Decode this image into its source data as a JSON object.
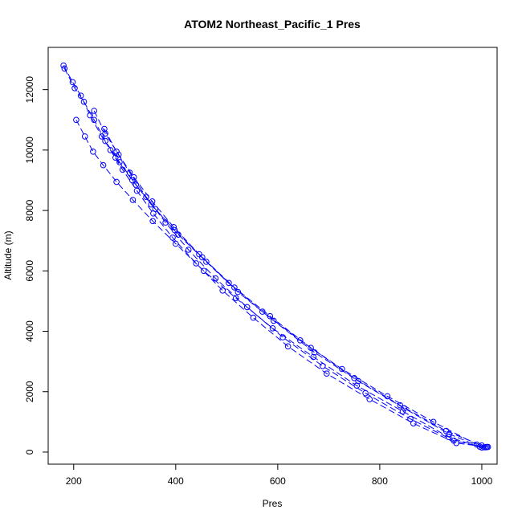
{
  "chart_data": {
    "type": "scatter",
    "title": "ATOM2 Northeast_Pacific_1 Pres",
    "xlabel": "Pres",
    "ylabel": "Altitude (m)",
    "xlim": [
      150,
      1030
    ],
    "ylim": [
      -400,
      13400
    ],
    "xticks": [
      200,
      400,
      600,
      800,
      1000
    ],
    "yticks": [
      0,
      2000,
      4000,
      6000,
      8000,
      10000,
      12000
    ],
    "color": "#0000ff",
    "markers": "open-circle",
    "line_style": "dashed",
    "grid": false,
    "legend": "none",
    "series": [
      {
        "x": [
          180,
          198,
          214,
          232,
          255,
          282,
          315,
          352,
          398,
          452,
          515,
          585,
          665,
          750,
          840,
          930,
          1000,
          1012
        ],
        "y": [
          12800,
          12250,
          11800,
          11150,
          10450,
          9750,
          9000,
          8200,
          7350,
          6450,
          5450,
          4500,
          3450,
          2450,
          1550,
          700,
          220,
          170
        ]
      },
      {
        "x": [
          182,
          202,
          220,
          240,
          262,
          290,
          322,
          360,
          405,
          460,
          522,
          592,
          672,
          758,
          848,
          936,
          996,
          1008
        ],
        "y": [
          12700,
          12050,
          11600,
          11000,
          10300,
          9600,
          8850,
          8050,
          7200,
          6300,
          5300,
          4350,
          3300,
          2350,
          1450,
          600,
          180,
          160
        ]
      },
      {
        "x": [
          205,
          222,
          238,
          258,
          284,
          316,
          355,
          400,
          455,
          518,
          590,
          670,
          755,
          845,
          935,
          1000
        ],
        "y": [
          11000,
          10450,
          9950,
          9500,
          8950,
          8350,
          7650,
          6900,
          6000,
          5100,
          4100,
          3150,
          2200,
          1350,
          500,
          150
        ]
      },
      {
        "x": [
          260,
          284,
          310,
          342,
          380,
          425,
          478,
          540,
          610,
          688,
          772,
          860,
          945,
          1005
        ],
        "y": [
          10700,
          9950,
          9250,
          8450,
          7600,
          6700,
          5750,
          4800,
          3800,
          2850,
          1950,
          1100,
          380,
          160
        ]
      },
      {
        "x": [
          240,
          262,
          288,
          318,
          354,
          396,
          446,
          504,
          570,
          644,
          726,
          815,
          905,
          990
        ],
        "y": [
          11300,
          10550,
          9850,
          9100,
          8300,
          7450,
          6550,
          5600,
          4650,
          3700,
          2750,
          1850,
          1000,
          250
        ]
      },
      {
        "x": [
          272,
          296,
          324,
          356,
          394,
          440,
          492,
          552,
          620,
          696,
          780,
          866,
          950,
          1010
        ],
        "y": [
          10000,
          9350,
          8650,
          7900,
          7100,
          6250,
          5350,
          4450,
          3500,
          2600,
          1750,
          950,
          300,
          170
        ]
      }
    ]
  }
}
